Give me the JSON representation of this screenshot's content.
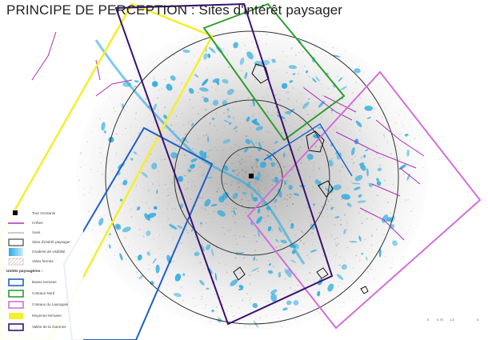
{
  "title": "PRINCIPE DE PERCEPTION : Sites d'intérêt paysager",
  "legend": {
    "items": [
      {
        "symbol": "square",
        "color": "#000000",
        "label": "Tour Occitanie"
      },
      {
        "symbol": "line",
        "color": "#b030b0",
        "label": "Crêtes"
      },
      {
        "symbol": "line",
        "color": "#b8b8b8",
        "label": "Vues"
      },
      {
        "symbol": "box",
        "color": "#222222",
        "label": "Sites d'intérêt paysager"
      },
      {
        "symbol": "gradient",
        "color": "#29a9e0",
        "label": "Gradient de visibilité"
      },
      {
        "symbol": "hatch",
        "color": "#c8a0a0",
        "label": "Vides fermés"
      }
    ],
    "subheading": "Unités paysagères :",
    "units": [
      {
        "color": "#1f5fc8",
        "label": "Basse terrasse"
      },
      {
        "color": "#2e9e2e",
        "label": "Coteaux Nord"
      },
      {
        "color": "#d070d8",
        "label": "Coteaux du Lauragais"
      },
      {
        "color": "#f5ef2a",
        "label": "Moyenne terrasse"
      },
      {
        "color": "#3a1070",
        "label": "Vallée de la Garonne"
      }
    ]
  },
  "scale_bar": {
    "ticks": [
      "0",
      "0.75",
      "1.5",
      "3"
    ]
  },
  "map": {
    "center_marker": "tour-occitanie",
    "rings": 3,
    "colors": {
      "water": "#29a9e0",
      "urban": "#9a9a9a",
      "ring": "#333333",
      "basse_terrasse": "#1f5fc8",
      "coteaux_nord": "#2e9e2e",
      "coteaux_lauragais": "#d070d8",
      "moyenne_terrasse": "#f5ef2a",
      "vallee_garonne": "#3a1070"
    }
  }
}
